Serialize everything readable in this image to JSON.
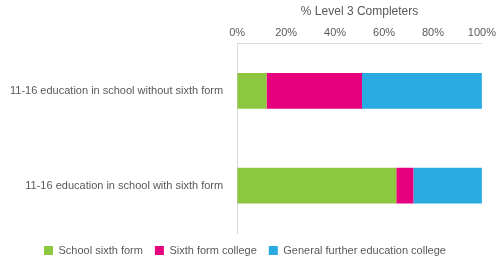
{
  "chart_data": {
    "type": "bar",
    "orientation": "horizontal",
    "stacked": true,
    "x_label": "% Level 3 Completers",
    "categories": [
      "11-16 education in school without sixth form",
      "11-16 education in school with sixth form"
    ],
    "series": [
      {
        "name": "School sixth form",
        "color": "#8dc63f",
        "values": [
          12,
          65
        ]
      },
      {
        "name": "Sixth form college",
        "color": "#e6007e",
        "values": [
          39,
          7
        ]
      },
      {
        "name": "General further education college",
        "color": "#29abe2",
        "values": [
          49,
          28
        ]
      }
    ],
    "xlim": [
      0,
      100
    ],
    "xticks": [
      {
        "value": 0,
        "label": "0%"
      },
      {
        "value": 20,
        "label": "20%"
      },
      {
        "value": 40,
        "label": "40%"
      },
      {
        "value": 60,
        "label": "60%"
      },
      {
        "value": 80,
        "label": "80%"
      },
      {
        "value": 100,
        "label": "100%"
      }
    ],
    "grid": false,
    "legend": "bottom"
  }
}
